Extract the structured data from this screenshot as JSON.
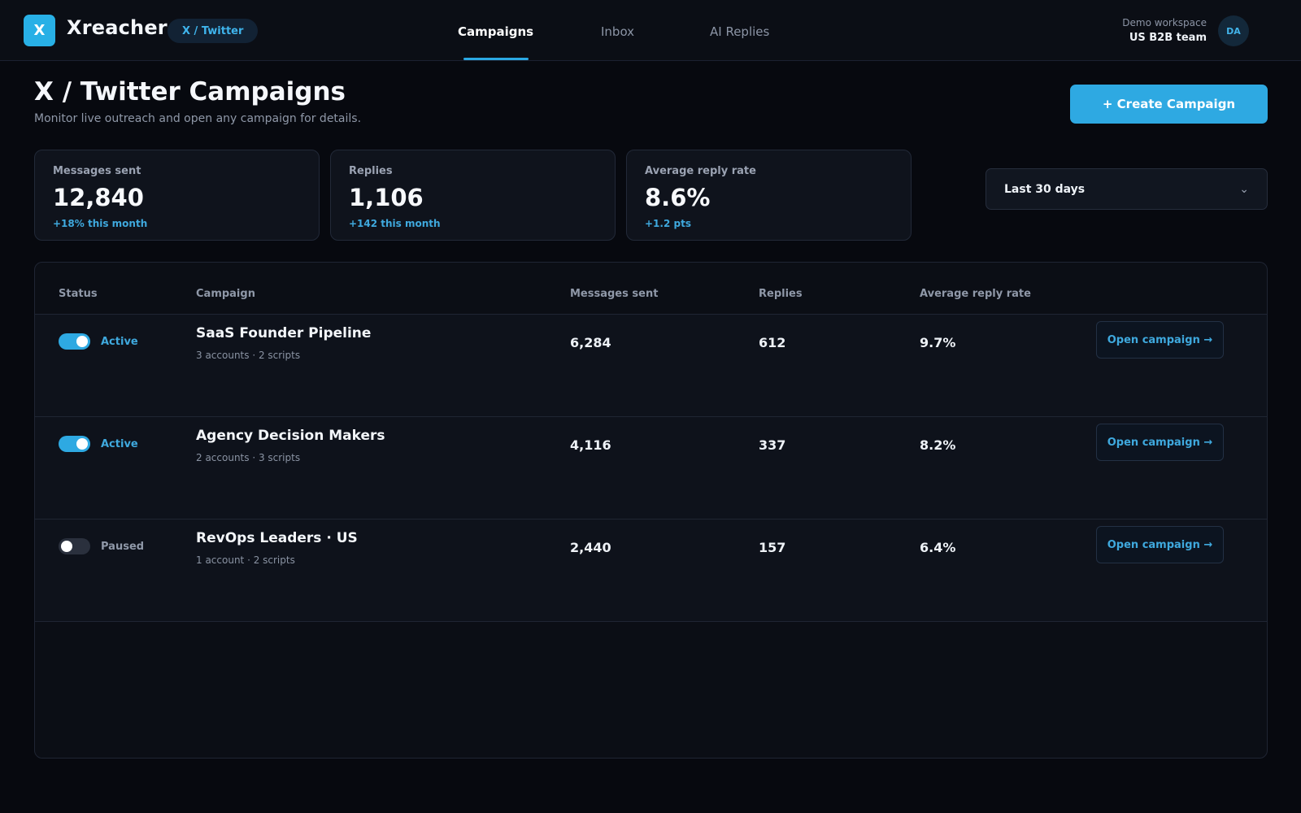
{
  "app": {
    "logo_letter": "X",
    "name": "Xreacher",
    "platform_badge": "X / Twitter"
  },
  "nav": {
    "tabs": [
      {
        "label": "Campaigns",
        "active": true
      },
      {
        "label": "Inbox",
        "active": false
      },
      {
        "label": "AI Replies",
        "active": false
      }
    ]
  },
  "workspace": {
    "label": "Demo workspace",
    "team": "US B2B team",
    "avatar_initials": "DA"
  },
  "header": {
    "title": "X / Twitter Campaigns",
    "subtitle": "Monitor live outreach and open any campaign for details.",
    "create_button": "+ Create Campaign"
  },
  "stats": [
    {
      "label": "Messages sent",
      "value": "12,840",
      "delta": "+18% this month"
    },
    {
      "label": "Replies",
      "value": "1,106",
      "delta": "+142 this month"
    },
    {
      "label": "Average reply rate",
      "value": "8.6%",
      "delta": "+1.2 pts"
    }
  ],
  "date_range": {
    "selected": "Last 30 days",
    "icon": "chevron-down-icon"
  },
  "table": {
    "columns": [
      "Status",
      "Campaign",
      "Messages sent",
      "Replies",
      "Average reply rate"
    ],
    "rows": [
      {
        "status": "Active",
        "enabled": true,
        "name": "SaaS Founder Pipeline",
        "meta": "3 accounts · 2 scripts",
        "messages_sent": "6,284",
        "replies": "612",
        "reply_rate": "9.7%",
        "action": "Open campaign →"
      },
      {
        "status": "Active",
        "enabled": true,
        "name": "Agency Decision Makers",
        "meta": "2 accounts · 3 scripts",
        "messages_sent": "4,116",
        "replies": "337",
        "reply_rate": "8.2%",
        "action": "Open campaign →"
      },
      {
        "status": "Paused",
        "enabled": false,
        "name": "RevOps Leaders · US",
        "meta": "1 account · 2 scripts",
        "messages_sent": "2,440",
        "replies": "157",
        "reply_rate": "6.4%",
        "action": "Open campaign →"
      }
    ]
  },
  "colors": {
    "accent": "#2ea9e2",
    "background": "#07090f",
    "surface": "#0f131c"
  }
}
